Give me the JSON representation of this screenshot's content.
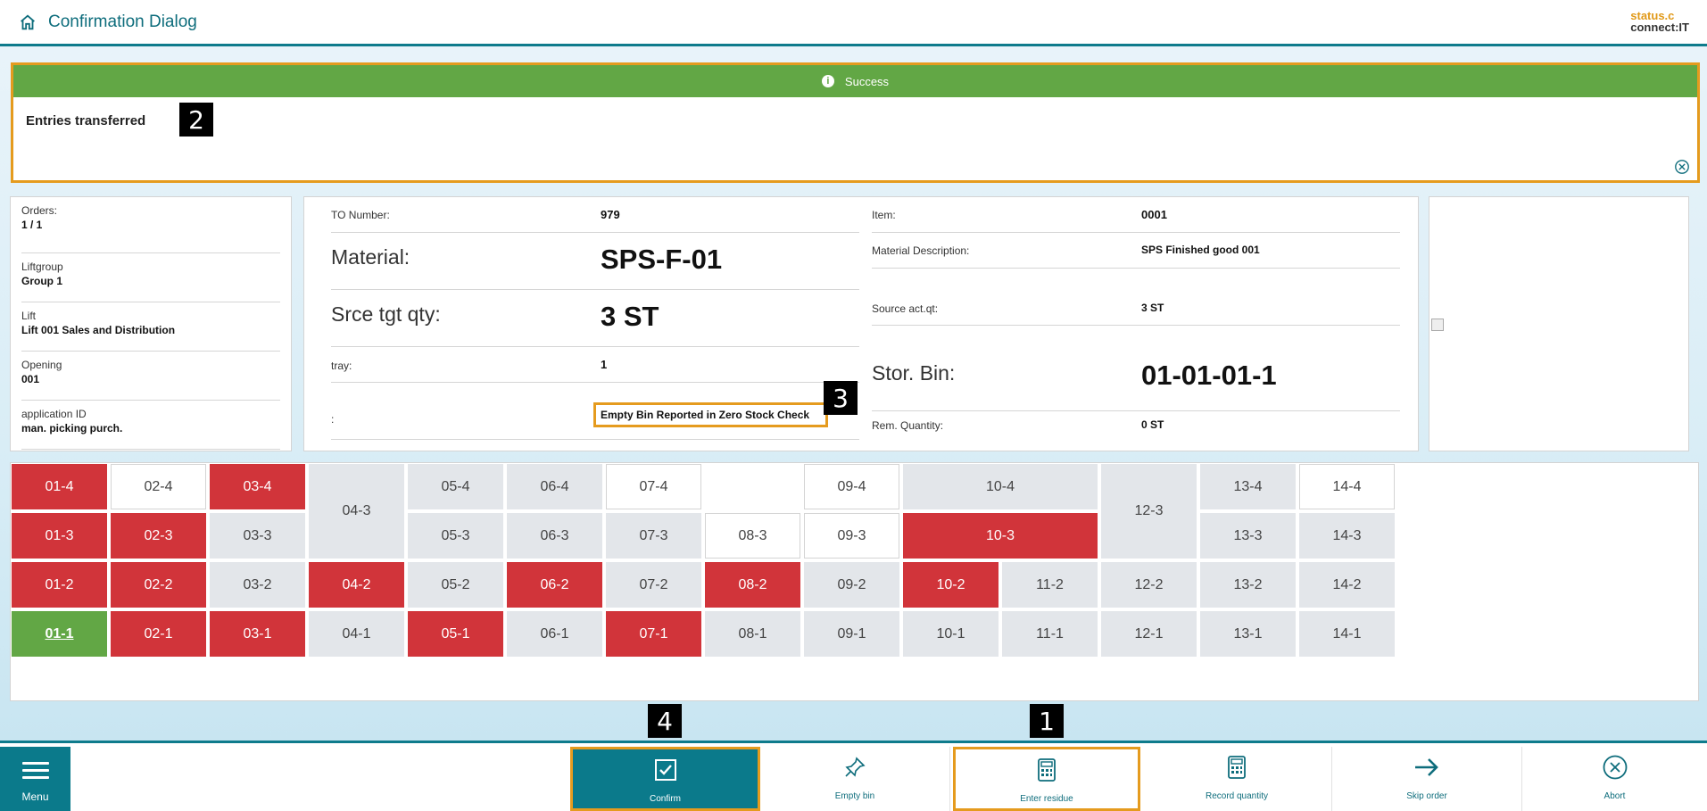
{
  "header": {
    "title": "Confirmation Dialog",
    "logo_line1": "status.c",
    "logo_line2": "connect:IT"
  },
  "message": {
    "type": "Success",
    "text": "Entries transferred"
  },
  "badges": {
    "b1": "1",
    "b2": "2",
    "b3": "3",
    "b4": "4"
  },
  "left_info": [
    {
      "label": "Orders:",
      "value": "1 / 1"
    },
    {
      "label": "Liftgroup",
      "value": "Group 1"
    },
    {
      "label": "Lift",
      "value": "Lift 001 Sales and Distribution"
    },
    {
      "label": "Opening",
      "value": "001"
    },
    {
      "label": "application ID",
      "value": "man. picking purch."
    }
  ],
  "details": {
    "to_number": {
      "label": "TO Number:",
      "value": "979"
    },
    "material": {
      "label": "Material:",
      "value": "SPS-F-01"
    },
    "srce_tgt_qty": {
      "label": "Srce tgt qty:",
      "value": "3 ST"
    },
    "tray": {
      "label": "tray:",
      "value": "1"
    },
    "exception": {
      "label": ":",
      "value": "Empty Bin Reported in Zero Stock Check"
    },
    "item": {
      "label": "Item:",
      "value": "0001"
    },
    "material_desc": {
      "label": "Material Description:",
      "value": "SPS Finished good 001"
    },
    "source_act_qt": {
      "label": "Source act.qt:",
      "value": "3 ST"
    },
    "stor_bin": {
      "label": "Stor. Bin:",
      "value": "01-01-01-1"
    },
    "rem_quantity": {
      "label": "Rem. Quantity:",
      "value": "0 ST"
    }
  },
  "bins": [
    {
      "id": "01-4",
      "s": "red"
    },
    {
      "id": "02-4",
      "s": "white"
    },
    {
      "id": "03-4",
      "s": "red"
    },
    {
      "id": "04-3",
      "s": "grey"
    },
    {
      "id": "05-4",
      "s": "grey"
    },
    {
      "id": "06-4",
      "s": "grey"
    },
    {
      "id": "07-4",
      "s": "white"
    },
    {
      "id": "09-4",
      "s": "white"
    },
    {
      "id": "10-4",
      "s": "grey"
    },
    {
      "id": "12-3",
      "s": "grey"
    },
    {
      "id": "13-4",
      "s": "grey"
    },
    {
      "id": "14-4",
      "s": "white"
    },
    {
      "id": "01-3",
      "s": "red"
    },
    {
      "id": "02-3",
      "s": "red"
    },
    {
      "id": "03-3",
      "s": "grey"
    },
    {
      "id": "05-3",
      "s": "grey"
    },
    {
      "id": "06-3",
      "s": "grey"
    },
    {
      "id": "07-3",
      "s": "grey"
    },
    {
      "id": "08-3",
      "s": "white"
    },
    {
      "id": "09-3",
      "s": "white"
    },
    {
      "id": "10-3",
      "s": "red"
    },
    {
      "id": "13-3",
      "s": "grey"
    },
    {
      "id": "14-3",
      "s": "grey"
    },
    {
      "id": "01-2",
      "s": "red"
    },
    {
      "id": "02-2",
      "s": "red"
    },
    {
      "id": "03-2",
      "s": "grey"
    },
    {
      "id": "04-2",
      "s": "red"
    },
    {
      "id": "05-2",
      "s": "grey"
    },
    {
      "id": "06-2",
      "s": "red"
    },
    {
      "id": "07-2",
      "s": "grey"
    },
    {
      "id": "08-2",
      "s": "red"
    },
    {
      "id": "09-2",
      "s": "grey"
    },
    {
      "id": "10-2",
      "s": "red"
    },
    {
      "id": "11-2",
      "s": "grey"
    },
    {
      "id": "12-2",
      "s": "grey"
    },
    {
      "id": "13-2",
      "s": "grey"
    },
    {
      "id": "14-2",
      "s": "grey"
    },
    {
      "id": "01-1",
      "s": "green"
    },
    {
      "id": "02-1",
      "s": "red"
    },
    {
      "id": "03-1",
      "s": "red"
    },
    {
      "id": "04-1",
      "s": "grey"
    },
    {
      "id": "05-1",
      "s": "red"
    },
    {
      "id": "06-1",
      "s": "grey"
    },
    {
      "id": "07-1",
      "s": "red"
    },
    {
      "id": "08-1",
      "s": "grey"
    },
    {
      "id": "09-1",
      "s": "grey"
    },
    {
      "id": "10-1",
      "s": "grey"
    },
    {
      "id": "11-1",
      "s": "grey"
    },
    {
      "id": "12-1",
      "s": "grey"
    },
    {
      "id": "13-1",
      "s": "grey"
    },
    {
      "id": "14-1",
      "s": "grey"
    }
  ],
  "footer": {
    "menu": "Menu",
    "confirm": "Confirm",
    "empty_bin": "Empty bin",
    "enter_residue": "Enter residue",
    "record_quantity": "Record quantity",
    "skip_order": "Skip order",
    "abort": "Abort"
  },
  "colors": {
    "accent": "#0b7a8b",
    "success": "#62a745",
    "occupied": "#d1343a",
    "highlight": "#e59b1e"
  }
}
